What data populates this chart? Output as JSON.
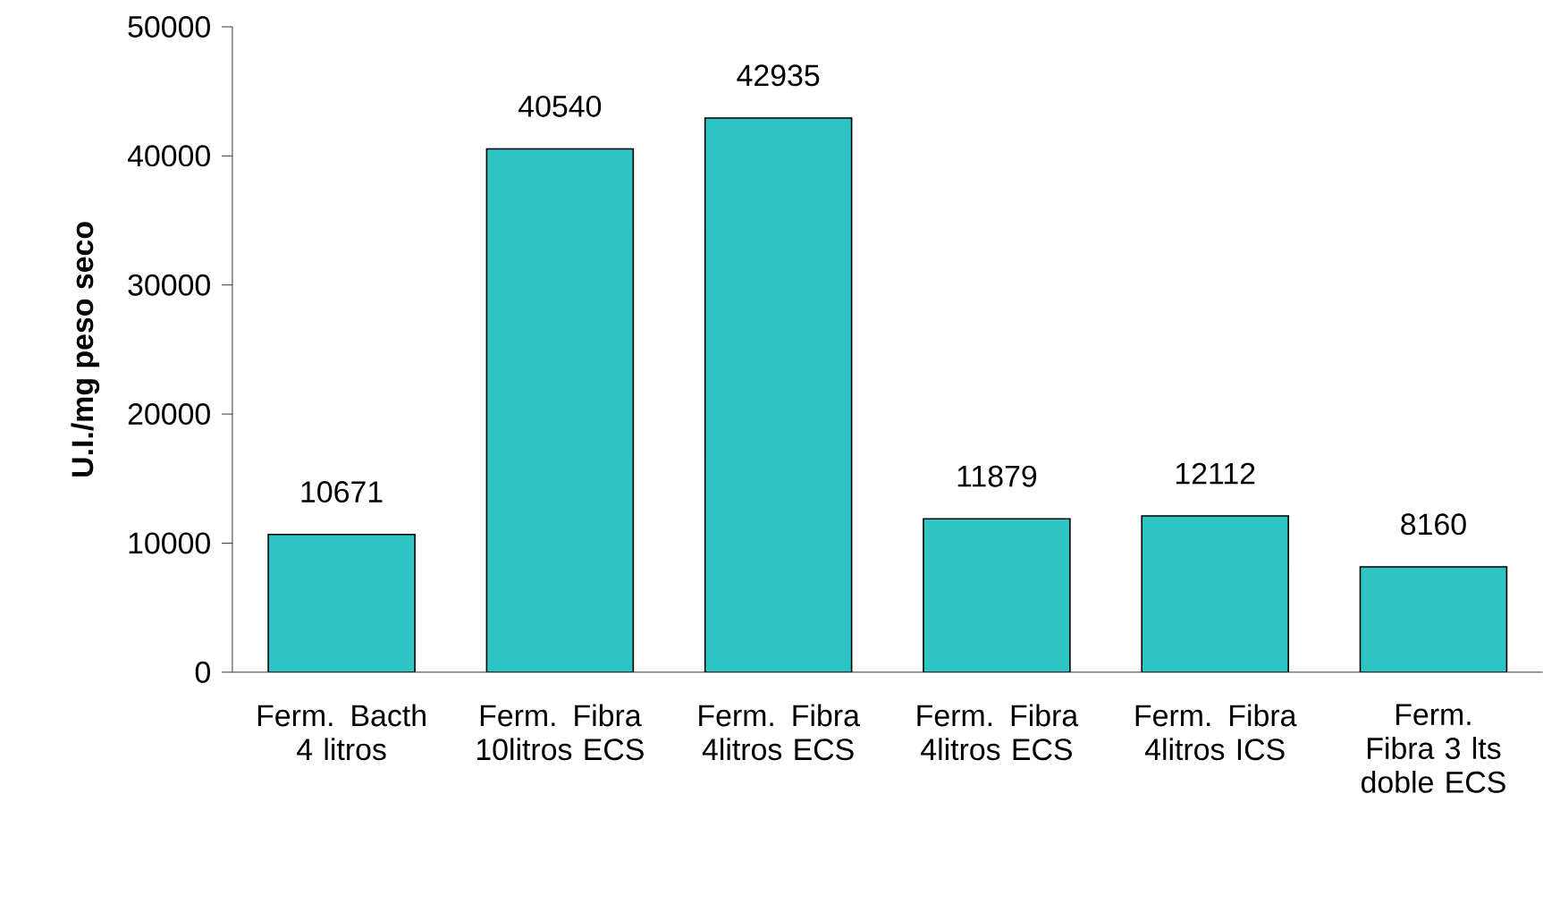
{
  "chart_data": {
    "type": "bar",
    "categories": [
      "Ferm. Bacth  4 litros",
      "Ferm. Fibra 10litros ECS",
      "Ferm. Fibra 4litros ECS",
      "Ferm. Fibra 4litros ECS",
      "Ferm. Fibra 4litros ICS",
      "Ferm. Fibra 3 lts doble ECS"
    ],
    "values": [
      10671,
      40540,
      42935,
      11879,
      12112,
      8160
    ],
    "color": "#2ec4c4",
    "ylabel": "U.I./mg peso seco",
    "ylim": [
      0,
      50000
    ],
    "yticks": [
      0,
      10000,
      20000,
      30000,
      40000,
      50000
    ],
    "data_labels": true
  }
}
